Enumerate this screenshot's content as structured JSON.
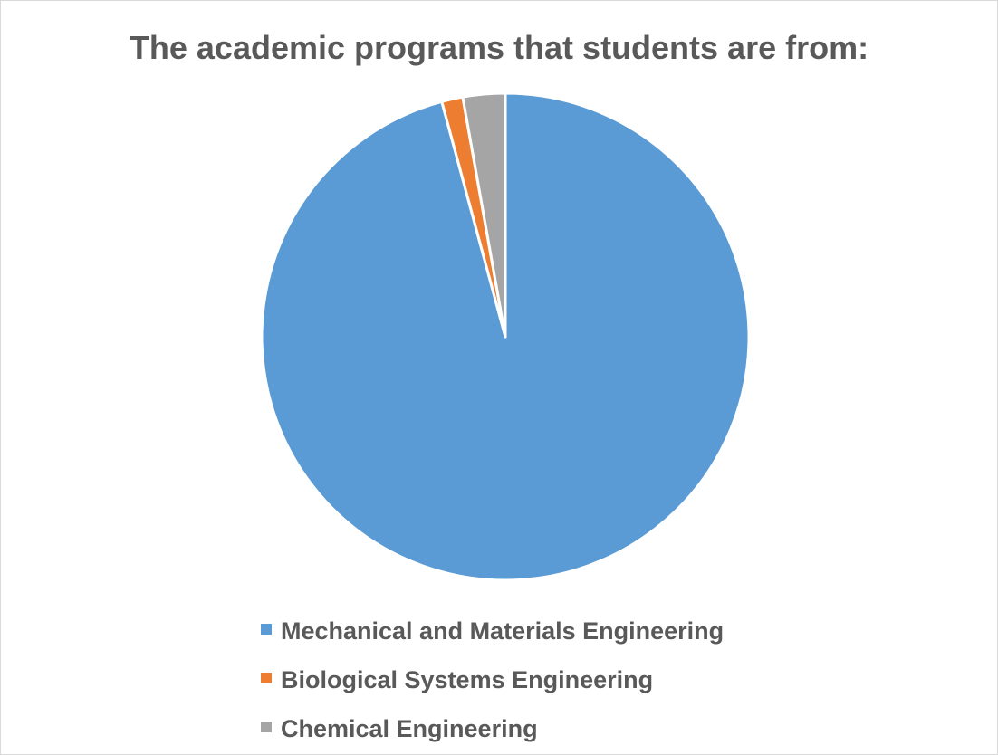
{
  "chart_data": {
    "type": "pie",
    "title": "The academic programs that students are from:",
    "categories": [
      "Mechanical and Materials Engineering",
      "Biological Systems Engineering",
      "Chemical Engineering"
    ],
    "values": [
      95.8,
      1.4,
      2.8
    ],
    "colors": [
      "#5b9bd5",
      "#ed7d31",
      "#a5a5a5"
    ],
    "start_angle_deg": 0,
    "direction": "clockwise",
    "legend_position": "bottom",
    "slice_border_color": "#ffffff"
  }
}
